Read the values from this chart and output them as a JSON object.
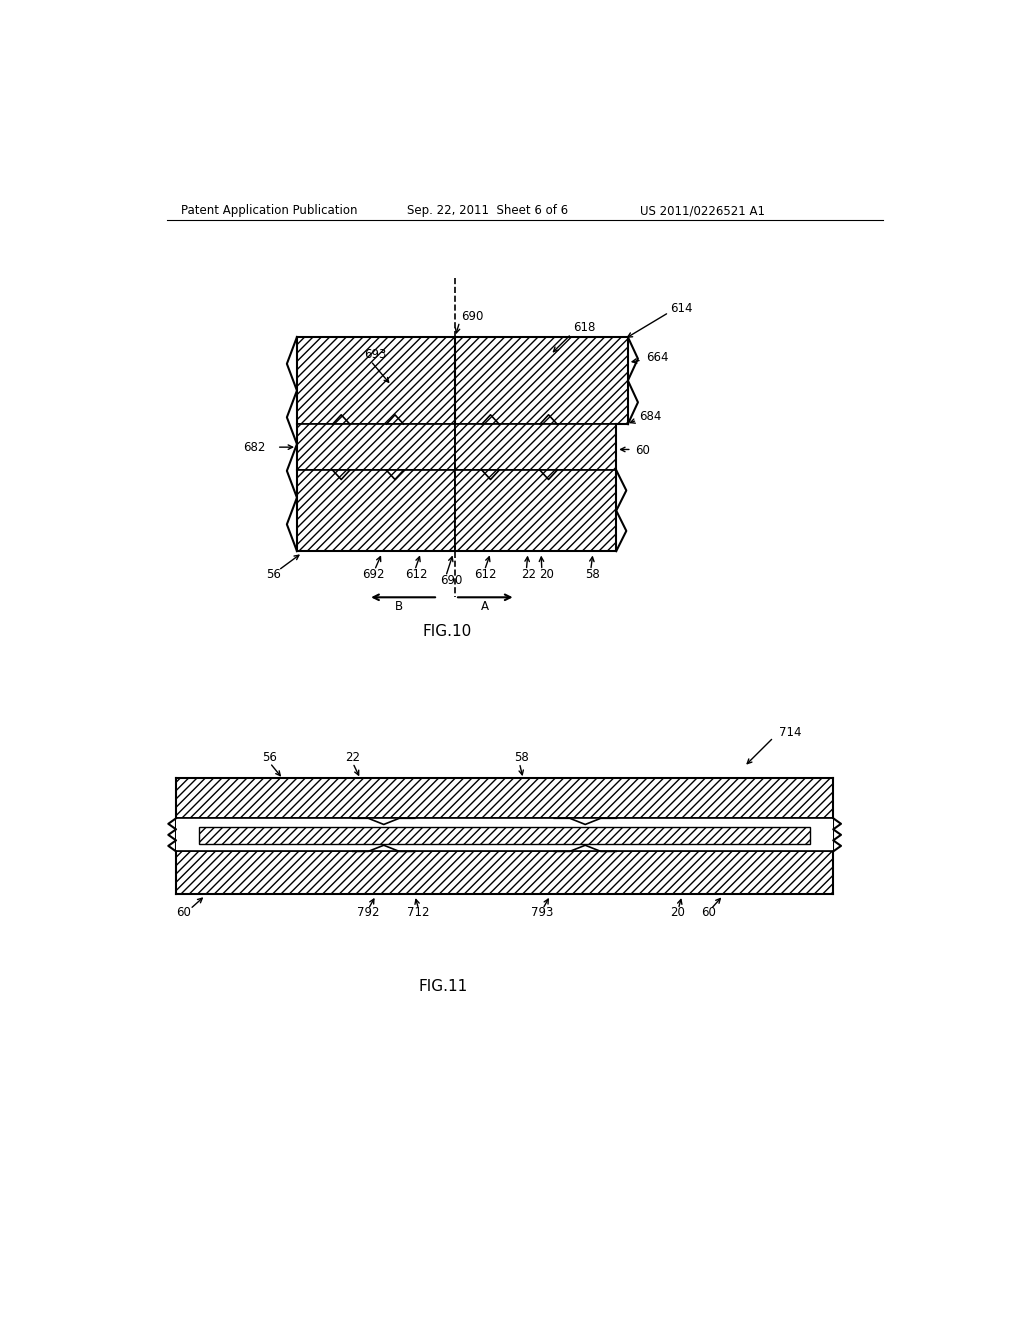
{
  "bg_color": "#ffffff",
  "header_left": "Patent Application Publication",
  "header_center": "Sep. 22, 2011  Sheet 6 of 6",
  "header_right": "US 2011/0226521 A1",
  "fig10_label": "FIG.10",
  "fig11_label": "FIG.11"
}
